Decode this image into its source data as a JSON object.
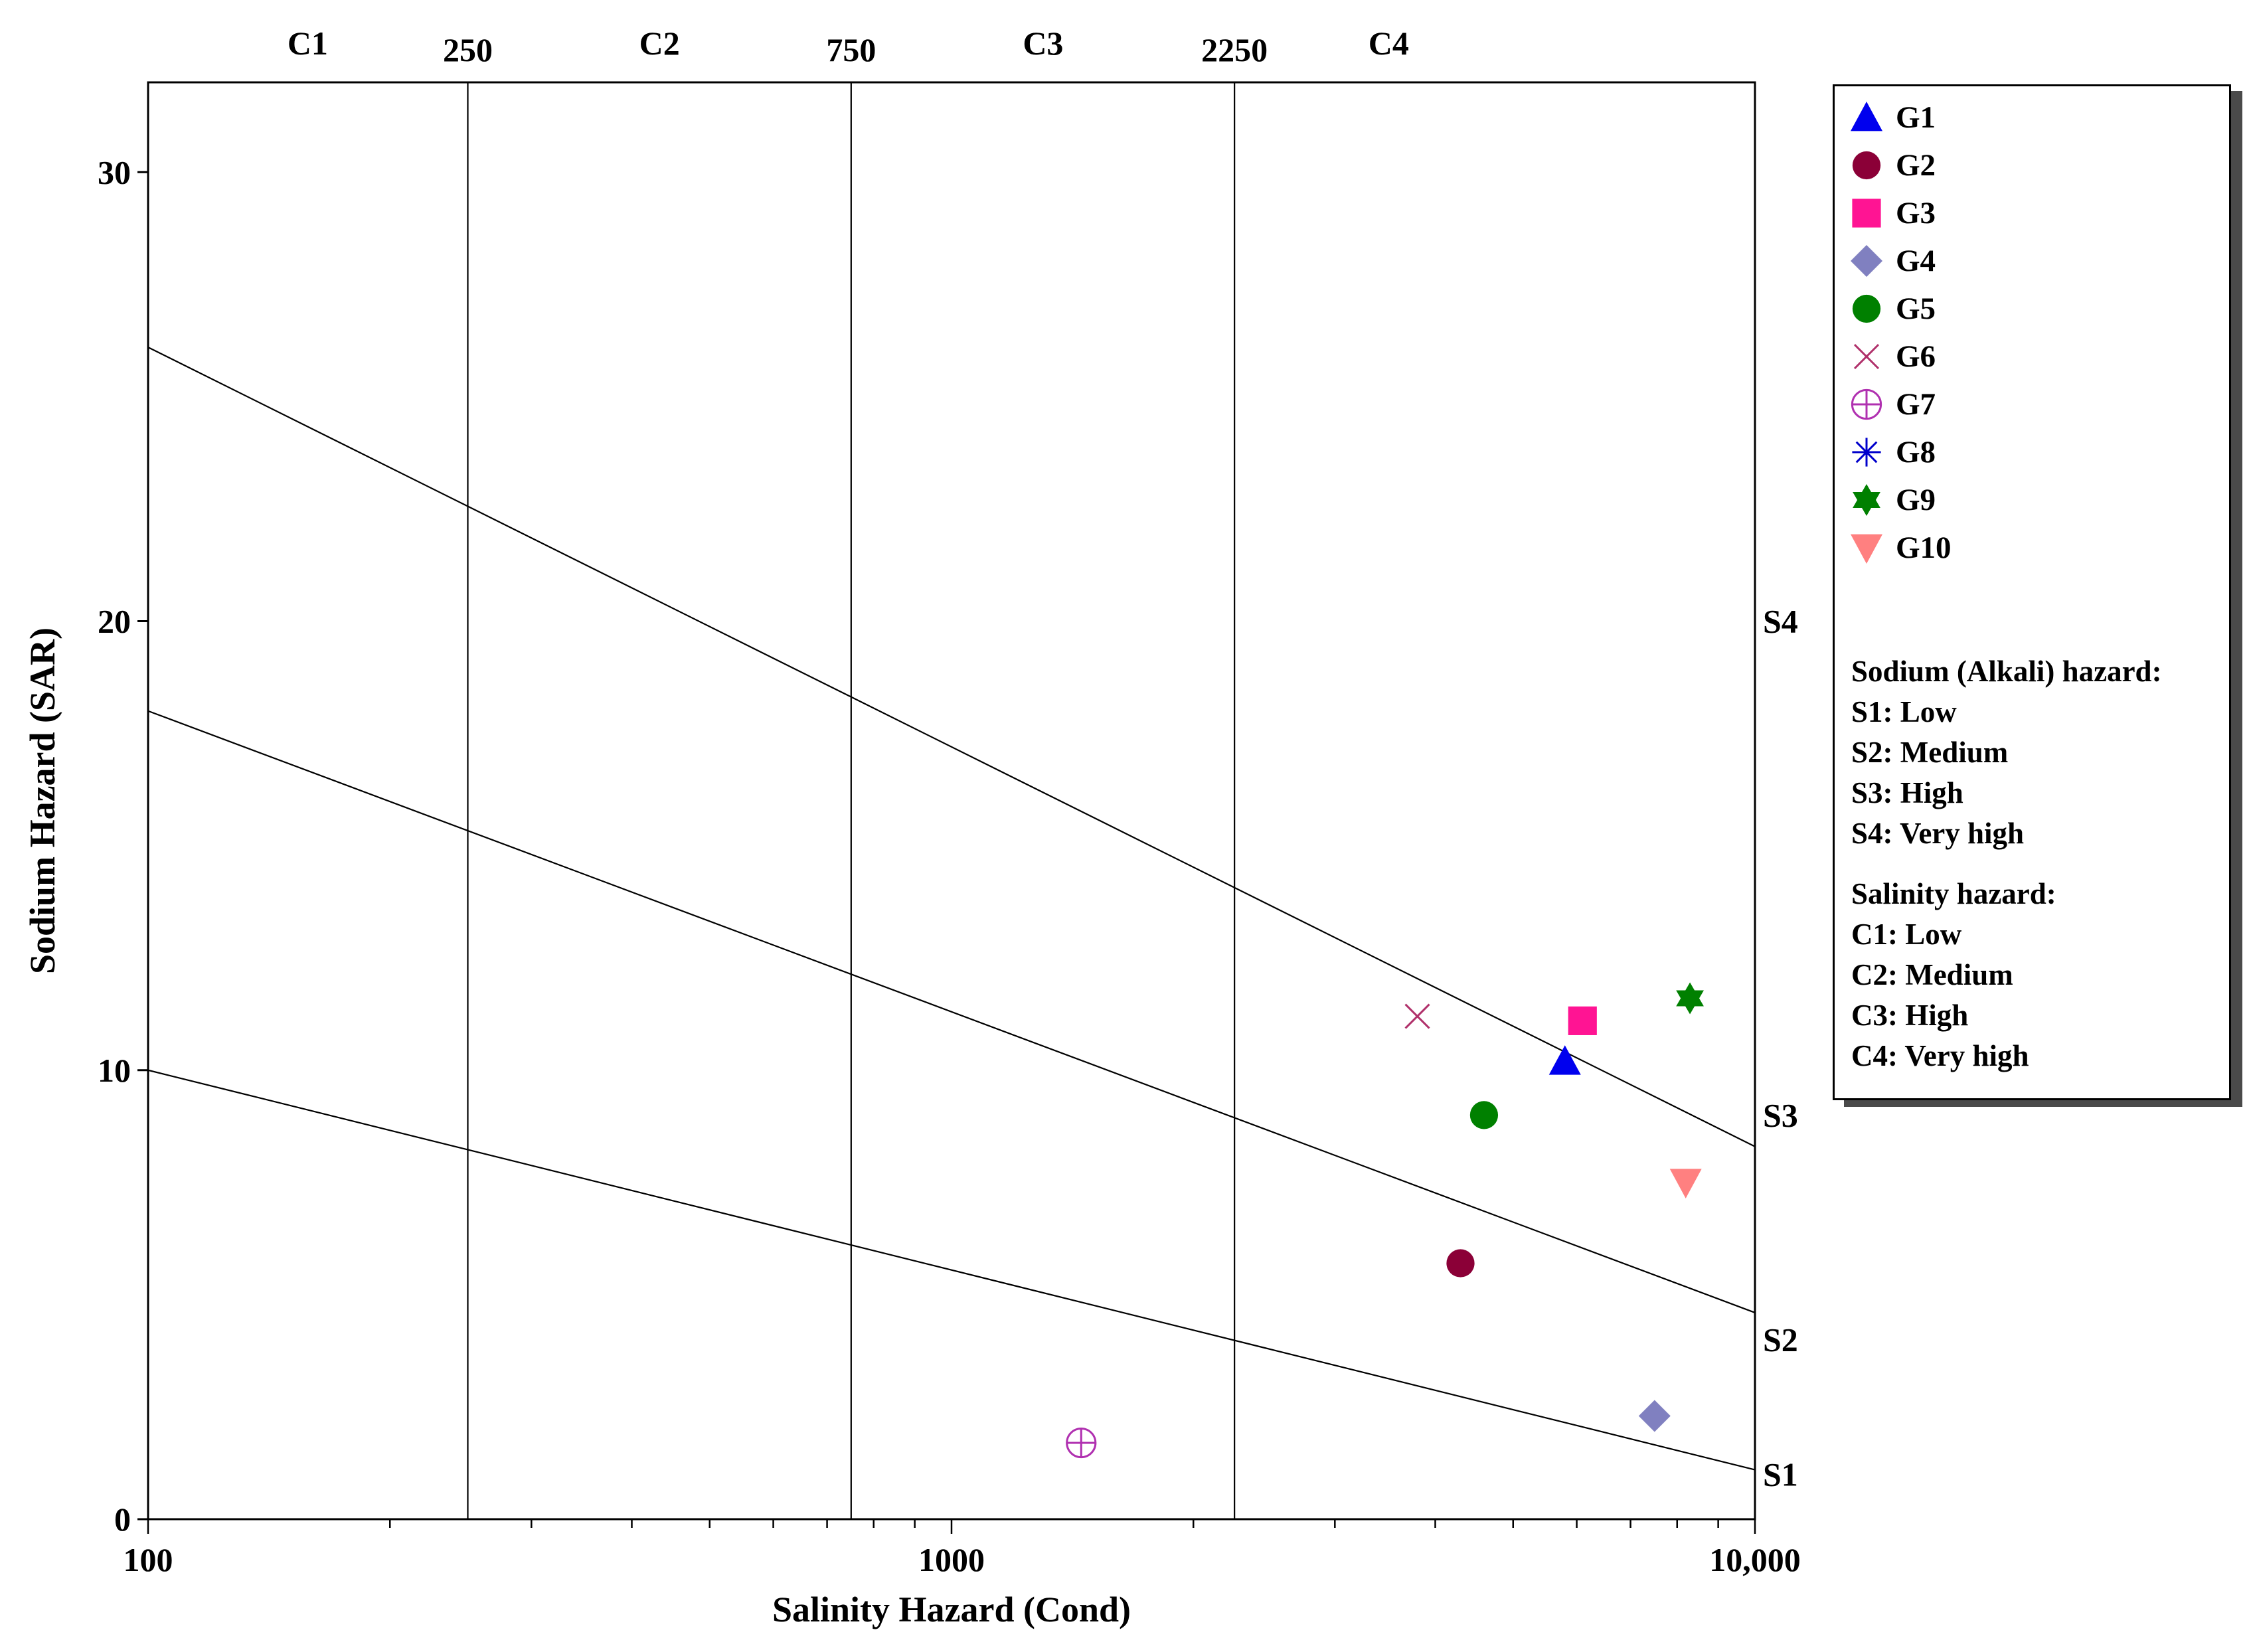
{
  "chart_data": {
    "type": "scatter",
    "title": "",
    "xlabel": "Salinity Hazard (Cond)",
    "ylabel": "Sodium Hazard (SAR)",
    "x_scale": "log",
    "xlim": [
      100,
      10000
    ],
    "ylim": [
      0,
      32
    ],
    "x_tick_labels": [
      "100",
      "1000",
      "10,000"
    ],
    "y_tick_labels": [
      "0",
      "10",
      "20",
      "30"
    ],
    "y_ticks": [
      0,
      10,
      20,
      30
    ],
    "salinity_boundaries": [
      {
        "value": 250,
        "label": "250"
      },
      {
        "value": 750,
        "label": "750"
      },
      {
        "value": 2250,
        "label": "2250"
      }
    ],
    "salinity_classes": [
      {
        "label": "C1",
        "center": 158
      },
      {
        "label": "C2",
        "center": 433
      },
      {
        "label": "C3",
        "center": 1300
      },
      {
        "label": "C4",
        "center": 3500
      }
    ],
    "sodium_lines": [
      {
        "label": "S1",
        "sar_at_100": 10,
        "sar_at_10000": 1.1
      },
      {
        "label": "S2",
        "sar_at_100": 18,
        "sar_at_10000": 4.6
      },
      {
        "label": "S3",
        "sar_at_100": 26.1,
        "sar_at_10000": 8.3
      }
    ],
    "sodium_class_labels": [
      {
        "label": "S1",
        "sar": 1
      },
      {
        "label": "S2",
        "sar": 4
      },
      {
        "label": "S3",
        "sar": 9
      },
      {
        "label": "S4",
        "sar": 20
      }
    ],
    "series": [
      {
        "name": "G1",
        "marker": "triangle-up",
        "color": "#0000ee",
        "x": 5800,
        "y": 10.2
      },
      {
        "name": "G2",
        "marker": "circle",
        "color": "#8b0037",
        "x": 4300,
        "y": 5.7
      },
      {
        "name": "G3",
        "marker": "square",
        "color": "#ff1493",
        "x": 6100,
        "y": 11.1
      },
      {
        "name": "G4",
        "marker": "diamond",
        "color": "#8080c0",
        "x": 7500,
        "y": 2.3
      },
      {
        "name": "G5",
        "marker": "circle",
        "color": "#008000",
        "x": 4600,
        "y": 9.0
      },
      {
        "name": "G6",
        "marker": "x",
        "color": "#b0306a",
        "x": 3800,
        "y": 11.2
      },
      {
        "name": "G7",
        "marker": "circle-cross",
        "color": "#b030b0",
        "x": 1450,
        "y": 1.7
      },
      {
        "name": "G8",
        "marker": "asterisk",
        "color": "#0000cc",
        "x": null,
        "y": null
      },
      {
        "name": "G9",
        "marker": "star6",
        "color": "#008000",
        "x": 8300,
        "y": 11.6
      },
      {
        "name": "G10",
        "marker": "triangle-down",
        "color": "#ff8080",
        "x": 8200,
        "y": 7.5
      }
    ]
  },
  "legend": {
    "sodium_title": "Sodium (Alkali) hazard:",
    "sodium_items": [
      "S1: Low",
      "S2: Medium",
      "S3: High",
      "S4: Very high"
    ],
    "salinity_title": "Salinity hazard:",
    "salinity_items": [
      "C1: Low",
      "C2: Medium",
      "C3: High",
      "C4: Very high"
    ]
  }
}
